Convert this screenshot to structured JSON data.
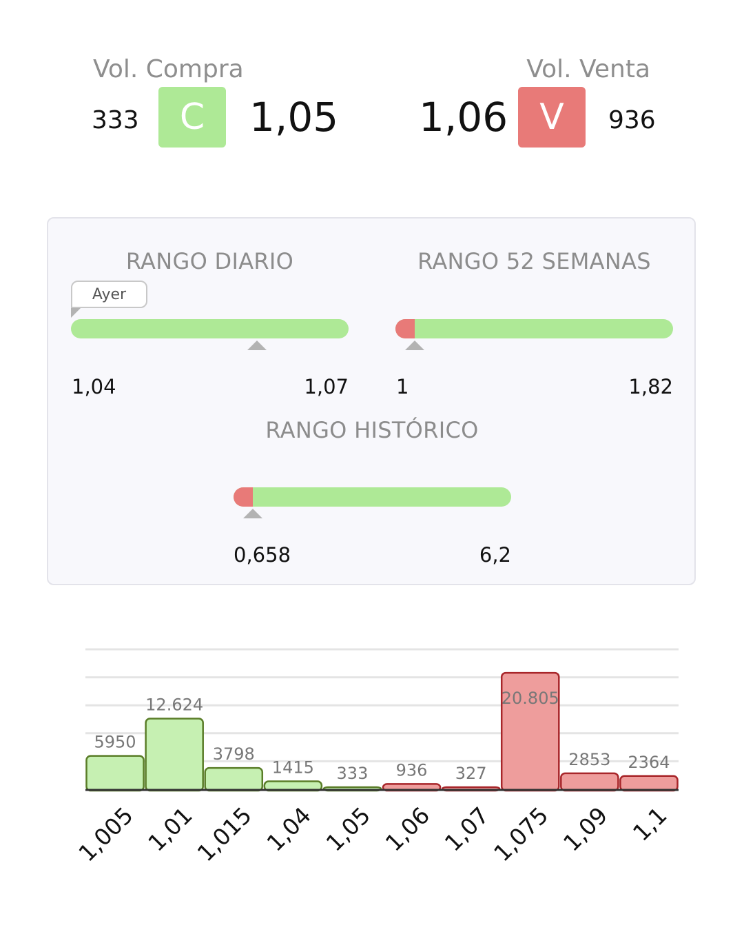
{
  "compra": {
    "label": "Vol. Compra",
    "volume": "333",
    "badge": "C",
    "price": "1,05",
    "color": "#aee996"
  },
  "venta": {
    "label": "Vol. Venta",
    "volume": "936",
    "badge": "V",
    "price": "1,06",
    "color": "#e87a78"
  },
  "ranges": {
    "diario": {
      "title": "RANGO DIARIO",
      "min": "1,04",
      "max": "1,07",
      "marker": 0.67,
      "red_fraction": 0,
      "tag": "Ayer"
    },
    "semanas": {
      "title": "RANGO 52 SEMANAS",
      "min": "1",
      "max": "1,82",
      "marker": 0.07,
      "red_fraction": 0.07
    },
    "historico": {
      "title": "RANGO HISTÓRICO",
      "min": "0,658",
      "max": "6,2",
      "marker": 0.07,
      "red_fraction": 0.07
    }
  },
  "chart_data": {
    "type": "bar",
    "categories": [
      "1,005",
      "1,01",
      "1,015",
      "1,04",
      "1,05",
      "1,06",
      "1,07",
      "1,075",
      "1,09",
      "1,1"
    ],
    "values": [
      5950,
      12624,
      3798,
      1415,
      333,
      936,
      327,
      20805,
      2853,
      2364
    ],
    "value_labels": [
      "5950",
      "12.624",
      "3798",
      "1415",
      "333",
      "936",
      "327",
      "20.805",
      "2853",
      "2364"
    ],
    "sides": [
      "buy",
      "buy",
      "buy",
      "buy",
      "buy",
      "sell",
      "sell",
      "sell",
      "sell",
      "sell"
    ],
    "colors": {
      "buy_fill": "#c6f0b2",
      "buy_stroke": "#5a7d28",
      "sell_fill": "#ee9d9c",
      "sell_stroke": "#a8262a"
    },
    "ylim": [
      0,
      25000
    ],
    "grid": true
  }
}
